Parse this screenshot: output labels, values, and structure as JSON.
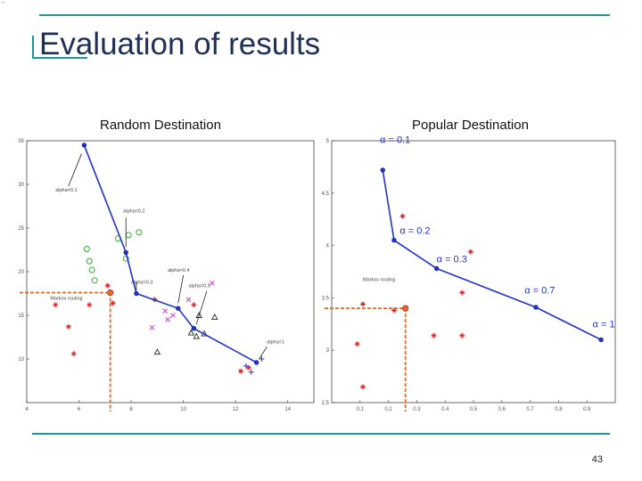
{
  "slide": {
    "corner_mark": "'''",
    "title": "Evaluation of results",
    "left_caption": "Random Destination",
    "right_caption": "Popular Destination",
    "page_number": "43",
    "colors": {
      "accent": "#1a9a94",
      "title": "#1f2f56",
      "line": "#2233cc",
      "red": "#cc2222",
      "orange": "#e06a28",
      "green": "#33aa33",
      "magenta": "#cc44cc"
    }
  },
  "chart_data": [
    {
      "type": "line",
      "name": "random-destination",
      "xlim": [
        4,
        15
      ],
      "ylim": [
        5,
        35
      ],
      "x_ticks": [
        "4",
        "6",
        "8",
        "10",
        "12",
        "14"
      ],
      "y_ticks": [
        "10",
        "15",
        "20",
        "25",
        "30",
        "35"
      ],
      "series": [
        {
          "values": [
            {
              "x": 6.2,
              "y": 34.5
            },
            {
              "x": 7.8,
              "y": 22.2
            },
            {
              "x": 8.2,
              "y": 17.5
            },
            {
              "x": 9.8,
              "y": 15.8
            },
            {
              "x": 10.4,
              "y": 13.5
            },
            {
              "x": 12.8,
              "y": 9.6
            }
          ]
        }
      ],
      "annotations": [
        {
          "text": "alpha=0.1",
          "x": 5.1,
          "y": 29.2
        },
        {
          "text": "alpha=0.2",
          "x": 7.7,
          "y": 26.8
        },
        {
          "text": "alpha=0.3",
          "x": 8.0,
          "y": 18.6
        },
        {
          "text": "alpha=0.4",
          "x": 9.4,
          "y": 20.0
        },
        {
          "text": "alpha=0.5",
          "x": 10.2,
          "y": 18.2
        },
        {
          "text": "alpha=1",
          "x": 13.2,
          "y": 11.8
        },
        {
          "text": "Markov routing",
          "x": 4.9,
          "y": 16.8
        }
      ],
      "markov_point": {
        "x": 7.2,
        "y": 17.6
      },
      "scatter": {
        "red_stars": [
          [
            5.1,
            16.2
          ],
          [
            5.6,
            13.7
          ],
          [
            5.8,
            10.6
          ],
          [
            6.4,
            16.2
          ],
          [
            7.3,
            16.4
          ],
          [
            7.1,
            18.4
          ],
          [
            8.9,
            16.8
          ],
          [
            10.4,
            16.2
          ],
          [
            12.2,
            8.6
          ],
          [
            12.5,
            9.0
          ]
        ],
        "blue_plus": [
          [
            12.6,
            8.5
          ],
          [
            12.4,
            9.2
          ],
          [
            13.0,
            10.0
          ]
        ],
        "magenta_x": [
          [
            9.3,
            15.5
          ],
          [
            9.6,
            15.0
          ],
          [
            10.2,
            16.8
          ],
          [
            11.1,
            18.7
          ],
          [
            9.4,
            14.5
          ],
          [
            8.8,
            13.6
          ]
        ],
        "green_circles": [
          [
            7.9,
            24.2
          ],
          [
            8.3,
            24.5
          ],
          [
            7.5,
            23.8
          ],
          [
            7.8,
            21.5
          ],
          [
            6.3,
            22.6
          ],
          [
            6.4,
            21.2
          ],
          [
            6.5,
            20.2
          ],
          [
            6.6,
            19.0
          ]
        ],
        "triangles": [
          [
            10.6,
            15.0
          ],
          [
            11.2,
            14.8
          ],
          [
            10.3,
            13.0
          ],
          [
            10.5,
            12.6
          ],
          [
            10.8,
            12.9
          ],
          [
            9.0,
            10.8
          ]
        ]
      }
    },
    {
      "type": "line",
      "name": "popular-destination",
      "xlim": [
        0,
        1
      ],
      "ylim": [
        2.5,
        5
      ],
      "x_ticks": [
        "0.1",
        "0.2",
        "0.3",
        "0.4",
        "0.5",
        "0.6",
        "0.7",
        "0.8",
        "0.9"
      ],
      "y_ticks": [
        "2.5",
        "3",
        "3.5",
        "4",
        "4.5",
        "5"
      ],
      "series": [
        {
          "values": [
            {
              "x": 0.18,
              "y": 4.72
            },
            {
              "x": 0.22,
              "y": 4.05
            },
            {
              "x": 0.37,
              "y": 3.78
            },
            {
              "x": 0.72,
              "y": 3.41
            },
            {
              "x": 0.95,
              "y": 3.1
            }
          ]
        }
      ],
      "annotations": [
        {
          "text": "α = 0.1",
          "x": 0.17,
          "y": 4.98
        },
        {
          "text": "α = 0.2",
          "x": 0.24,
          "y": 4.11
        },
        {
          "text": "α = 0.3",
          "x": 0.37,
          "y": 3.84
        },
        {
          "text": "α = 0.7",
          "x": 0.68,
          "y": 3.54
        },
        {
          "text": "α = 1",
          "x": 0.92,
          "y": 3.22
        },
        {
          "text": "Markov routing",
          "x": 0.11,
          "y": 3.66
        }
      ],
      "markov_point": {
        "x": 0.26,
        "y": 3.4
      },
      "scatter": {
        "red_stars": [
          [
            0.25,
            4.28
          ],
          [
            0.49,
            3.94
          ],
          [
            0.46,
            3.55
          ],
          [
            0.36,
            3.14
          ],
          [
            0.46,
            3.14
          ],
          [
            0.11,
            3.44
          ],
          [
            0.09,
            3.06
          ],
          [
            0.11,
            2.65
          ],
          [
            0.22,
            3.38
          ]
        ]
      }
    }
  ]
}
